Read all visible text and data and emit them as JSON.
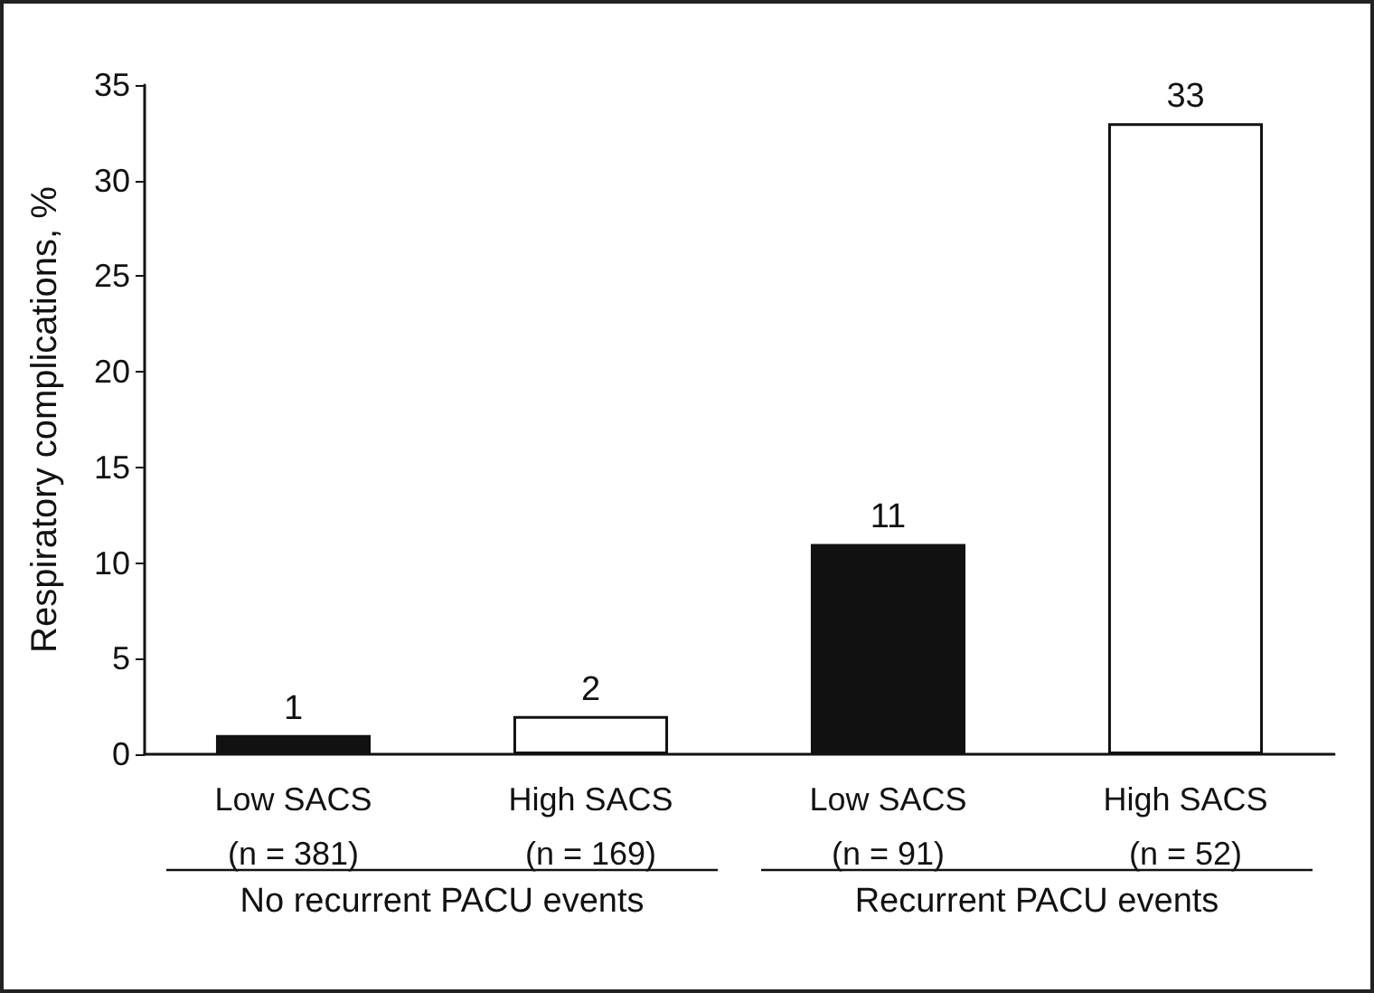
{
  "chart_data": {
    "type": "bar",
    "ylabel": "Respiratory complications, %",
    "categories": [
      "Low SACS\n(n = 381)",
      "High SACS\n(n = 169)",
      "Low SACS\n(n = 91)",
      "High SACS\n(n = 52)"
    ],
    "values": [
      1,
      2,
      11,
      33
    ],
    "colors": [
      "#111111",
      "#ffffff",
      "#111111",
      "#ffffff"
    ],
    "ylim": [
      0,
      35
    ],
    "yticks": [
      0,
      5,
      10,
      15,
      20,
      25,
      30,
      35
    ],
    "data_labels": true,
    "grid": false,
    "annotations": [
      "No recurrent PACU events",
      "Recurrent PACU events"
    ]
  }
}
